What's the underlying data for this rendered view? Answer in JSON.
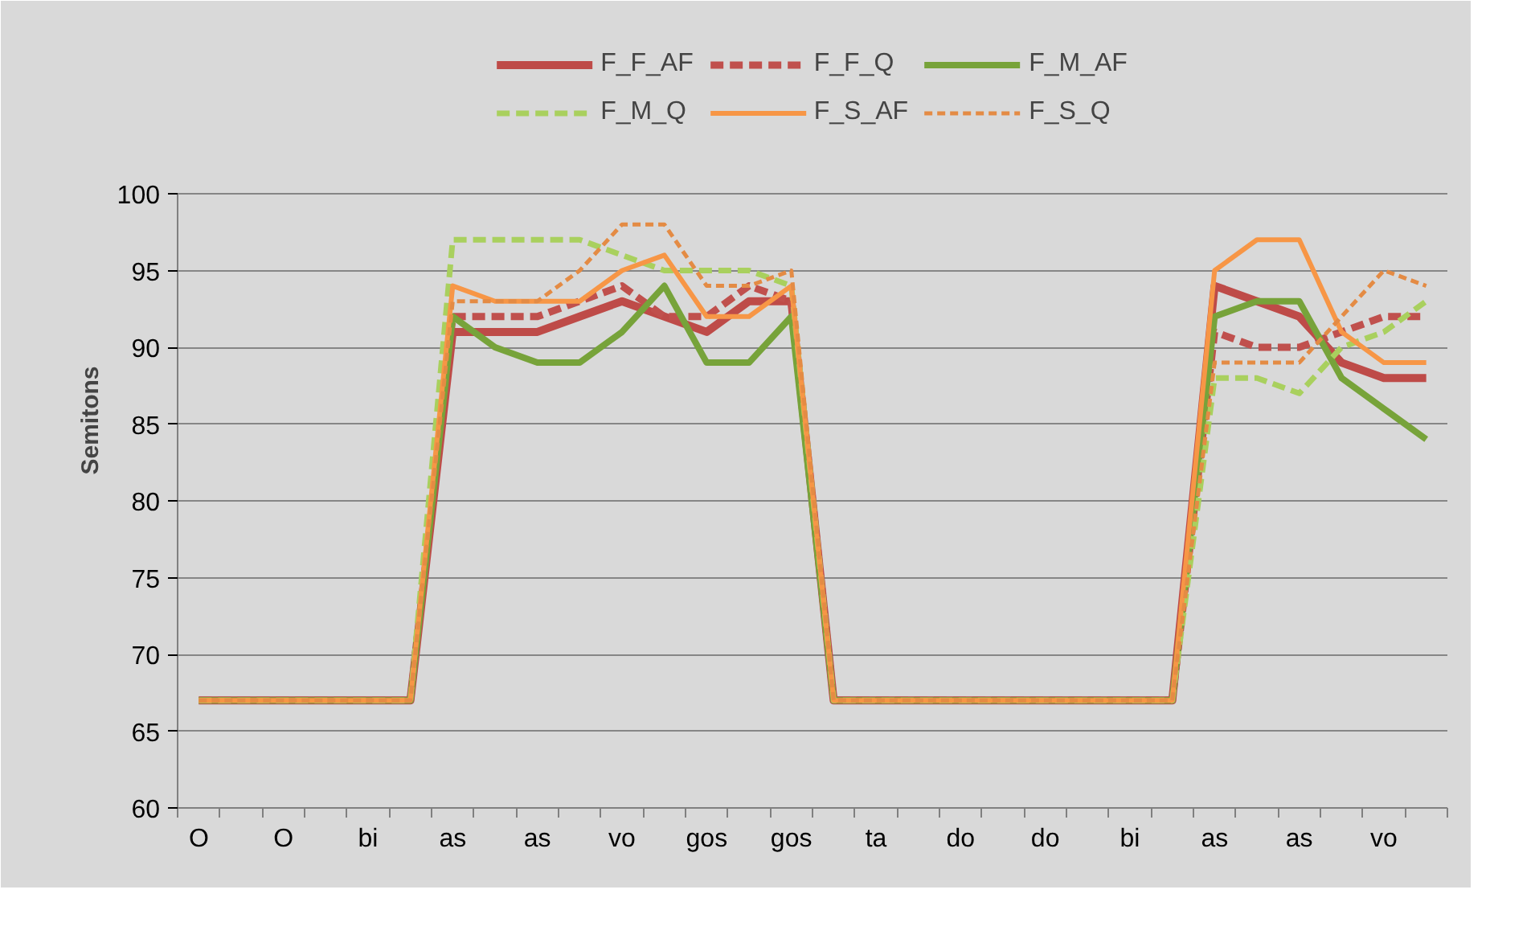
{
  "chart_data": {
    "type": "line",
    "ylabel": "Semitons",
    "categories": [
      "O",
      null,
      "O",
      null,
      "bi",
      null,
      "as",
      null,
      "as",
      null,
      "vo",
      null,
      "gos",
      null,
      "gos",
      null,
      "ta",
      null,
      "do",
      null,
      "do",
      null,
      "bi",
      null,
      "as",
      null,
      "as",
      null,
      "vo",
      null
    ],
    "ylim": [
      60,
      100
    ],
    "yticks": [
      60,
      65,
      70,
      75,
      80,
      85,
      90,
      95,
      100
    ],
    "grid": "y",
    "legend": "top",
    "series": [
      {
        "name": "F_F_AF",
        "color": "#be4b48",
        "line_style": "solid",
        "values": [
          67,
          67,
          67,
          67,
          67,
          67,
          91,
          91,
          91,
          92,
          93,
          92,
          91,
          93,
          93,
          67,
          67,
          67,
          67,
          67,
          67,
          67,
          67,
          67,
          94,
          93,
          92,
          89,
          88,
          88
        ]
      },
      {
        "name": "F_F_Q",
        "color": "#c0504d",
        "line_style": "dashed",
        "values": [
          67,
          67,
          67,
          67,
          67,
          67,
          92,
          92,
          92,
          93,
          94,
          92,
          92,
          94,
          93,
          67,
          67,
          67,
          67,
          67,
          67,
          67,
          67,
          67,
          91,
          90,
          90,
          91,
          92,
          92
        ]
      },
      {
        "name": "F_M_AF",
        "color": "#77a33a",
        "line_style": "solid",
        "values": [
          67,
          67,
          67,
          67,
          67,
          67,
          92,
          90,
          89,
          89,
          91,
          94,
          89,
          89,
          92,
          67,
          67,
          67,
          67,
          67,
          67,
          67,
          67,
          67,
          92,
          93,
          93,
          88,
          86,
          84
        ]
      },
      {
        "name": "F_M_Q",
        "color": "#a9d05e",
        "line_style": "dashed",
        "values": [
          67,
          67,
          67,
          67,
          67,
          67,
          97,
          97,
          97,
          97,
          96,
          95,
          95,
          95,
          94,
          67,
          67,
          67,
          67,
          67,
          67,
          67,
          67,
          67,
          88,
          88,
          87,
          90,
          91,
          93
        ]
      },
      {
        "name": "F_S_AF",
        "color": "#f79646",
        "line_style": "solid",
        "values": [
          67,
          67,
          67,
          67,
          67,
          67,
          94,
          93,
          93,
          93,
          95,
          96,
          92,
          92,
          94,
          67,
          67,
          67,
          67,
          67,
          67,
          67,
          67,
          67,
          95,
          97,
          97,
          91,
          89,
          89
        ]
      },
      {
        "name": "F_S_Q",
        "color": "#e48b44",
        "line_style": "dotted",
        "values": [
          67,
          67,
          67,
          67,
          67,
          67,
          93,
          93,
          93,
          95,
          98,
          98,
          94,
          94,
          95,
          67,
          67,
          67,
          67,
          67,
          67,
          67,
          67,
          67,
          89,
          89,
          89,
          92,
          95,
          94
        ]
      }
    ]
  }
}
